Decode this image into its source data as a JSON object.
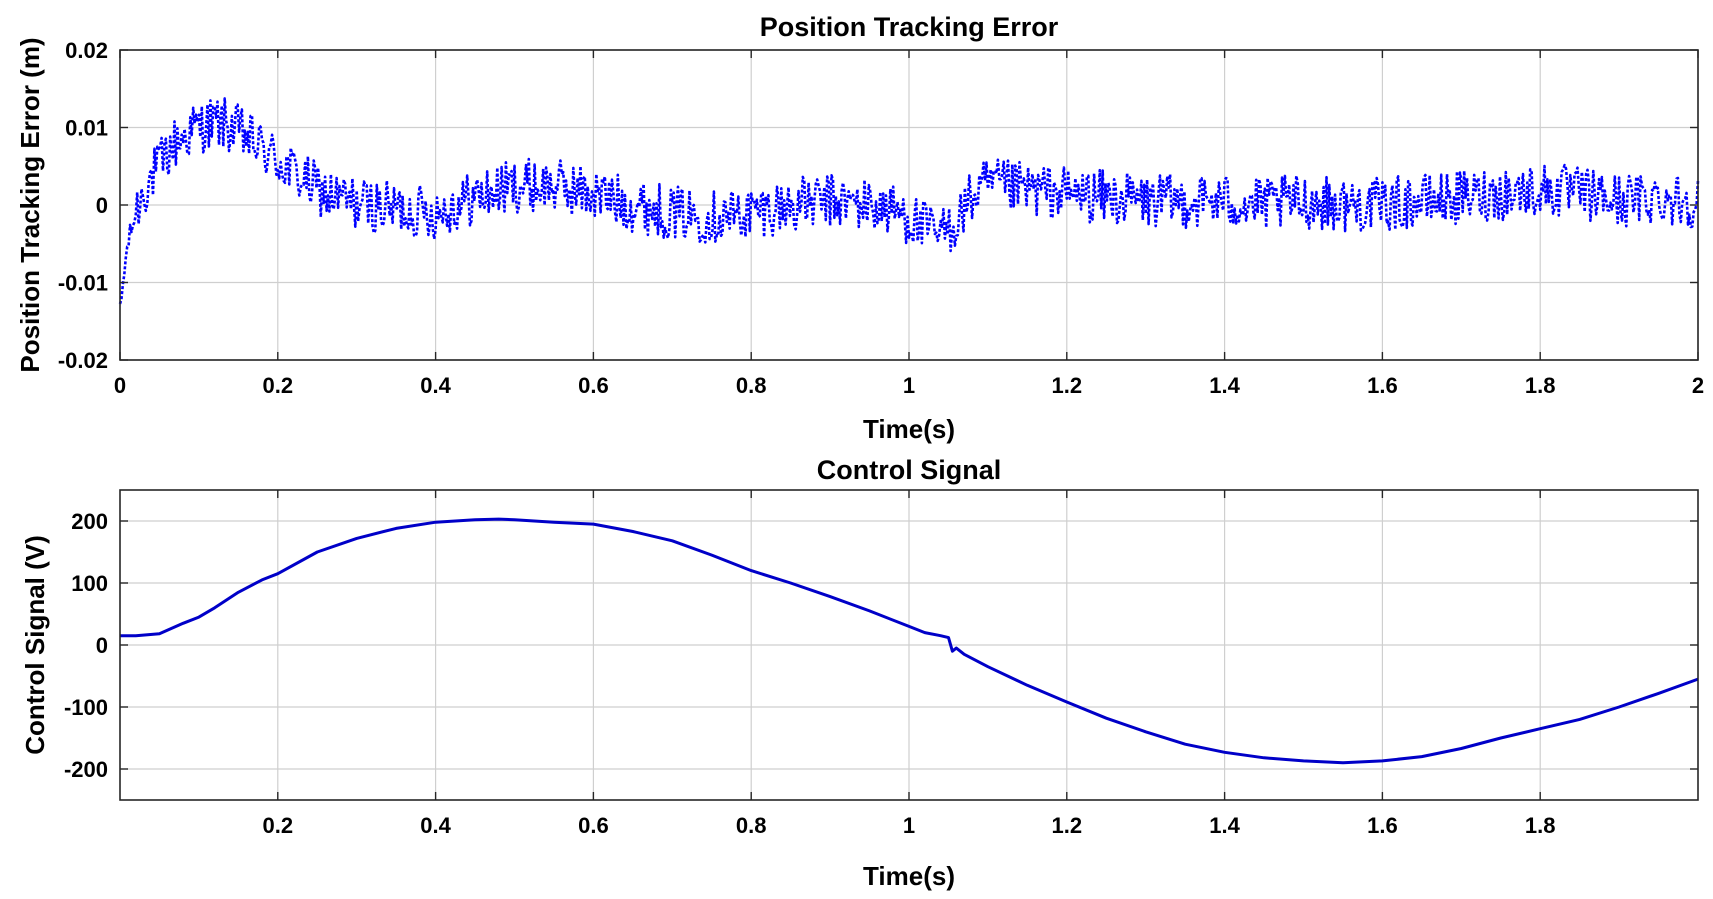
{
  "chart_data": [
    {
      "type": "line",
      "title": "Position Tracking Error",
      "xlabel": "Time(s)",
      "ylabel": "Position Tracking Error (m)",
      "xlim": [
        0,
        2
      ],
      "ylim": [
        -0.02,
        0.02
      ],
      "xticks": [
        0,
        0.2,
        0.4,
        0.6,
        0.8,
        1,
        1.2,
        1.4,
        1.6,
        1.8,
        2
      ],
      "xtick_labels": [
        "0",
        "0.2",
        "0.4",
        "0.6",
        "0.8",
        "1",
        "1.2",
        "1.4",
        "1.6",
        "1.8",
        "2"
      ],
      "yticks": [
        -0.02,
        -0.01,
        0,
        0.01,
        0.02
      ],
      "ytick_labels": [
        "-0.02",
        "-0.01",
        "0",
        "0.01",
        "0.02"
      ],
      "grid": true,
      "legend": "none",
      "series": [
        {
          "color": "#0000ff",
          "line_style": "dotted",
          "noise_amplitude": 0.0035,
          "x": [
            0,
            0.005,
            0.01,
            0.02,
            0.03,
            0.05,
            0.07,
            0.09,
            0.11,
            0.13,
            0.15,
            0.17,
            0.19,
            0.21,
            0.23,
            0.25,
            0.27,
            0.29,
            0.31,
            0.35,
            0.4,
            0.45,
            0.5,
            0.55,
            0.6,
            0.65,
            0.7,
            0.75,
            0.8,
            0.85,
            0.9,
            0.95,
            0.99,
            1.02,
            1.04,
            1.06,
            1.08,
            1.1,
            1.15,
            1.2,
            1.25,
            1.3,
            1.35,
            1.4,
            1.45,
            1.5,
            1.55,
            1.6,
            1.65,
            1.7,
            1.75,
            1.8,
            1.85,
            1.9,
            1.95,
            2
          ],
          "y": [
            -0.014,
            -0.009,
            -0.005,
            -0.001,
            0.002,
            0.005,
            0.008,
            0.0095,
            0.0105,
            0.0105,
            0.0095,
            0.008,
            0.0065,
            0.005,
            0.0035,
            0.002,
            0.001,
            0.0005,
            0,
            -0.0005,
            -0.001,
            0.001,
            0.0025,
            0.0025,
            0.0015,
            0,
            -0.001,
            -0.0015,
            -0.001,
            0,
            0.0005,
            0,
            -0.001,
            -0.003,
            -0.004,
            -0.002,
            0.001,
            0.0025,
            0.002,
            0.0015,
            0.001,
            0.0005,
            0.0005,
            0.0005,
            0,
            0.0005,
            0,
            0,
            0.0005,
            0.001,
            0.0015,
            0.002,
            0.0015,
            0.0005,
            0.001,
            0.0005
          ]
        }
      ]
    },
    {
      "type": "line",
      "title": "Control Signal",
      "xlabel": "Time(s)",
      "ylabel": "Control Signal (V)",
      "xlim": [
        0,
        2
      ],
      "ylim": [
        -250,
        250
      ],
      "xticks": [
        0.2,
        0.4,
        0.6,
        0.8,
        1,
        1.2,
        1.4,
        1.6,
        1.8
      ],
      "xtick_labels": [
        "0.2",
        "0.4",
        "0.6",
        "0.8",
        "1",
        "1.2",
        "1.4",
        "1.6",
        "1.8"
      ],
      "yticks": [
        -200,
        -100,
        0,
        100,
        200
      ],
      "ytick_labels": [
        "-200",
        "-100",
        "0",
        "100",
        "200"
      ],
      "grid": true,
      "legend": "none",
      "series": [
        {
          "color": "#0000c8",
          "line_style": "solid",
          "x": [
            0,
            0.02,
            0.05,
            0.08,
            0.1,
            0.12,
            0.15,
            0.18,
            0.2,
            0.25,
            0.3,
            0.35,
            0.4,
            0.45,
            0.48,
            0.5,
            0.55,
            0.6,
            0.65,
            0.7,
            0.75,
            0.8,
            0.85,
            0.9,
            0.95,
            1.0,
            1.02,
            1.04,
            1.05,
            1.055,
            1.06,
            1.07,
            1.1,
            1.15,
            1.2,
            1.25,
            1.3,
            1.35,
            1.4,
            1.45,
            1.5,
            1.55,
            1.6,
            1.65,
            1.7,
            1.75,
            1.8,
            1.85,
            1.9,
            1.95,
            2.0
          ],
          "y": [
            15,
            15,
            18,
            35,
            45,
            60,
            85,
            105,
            115,
            150,
            172,
            188,
            198,
            202,
            203,
            202,
            198,
            195,
            183,
            168,
            145,
            120,
            100,
            78,
            55,
            30,
            20,
            15,
            12,
            -10,
            -5,
            -15,
            -35,
            -65,
            -92,
            -118,
            -140,
            -160,
            -173,
            -182,
            -187,
            -190,
            -187,
            -180,
            -167,
            -150,
            -135,
            -120,
            -100,
            -78,
            -55
          ]
        }
      ]
    }
  ]
}
